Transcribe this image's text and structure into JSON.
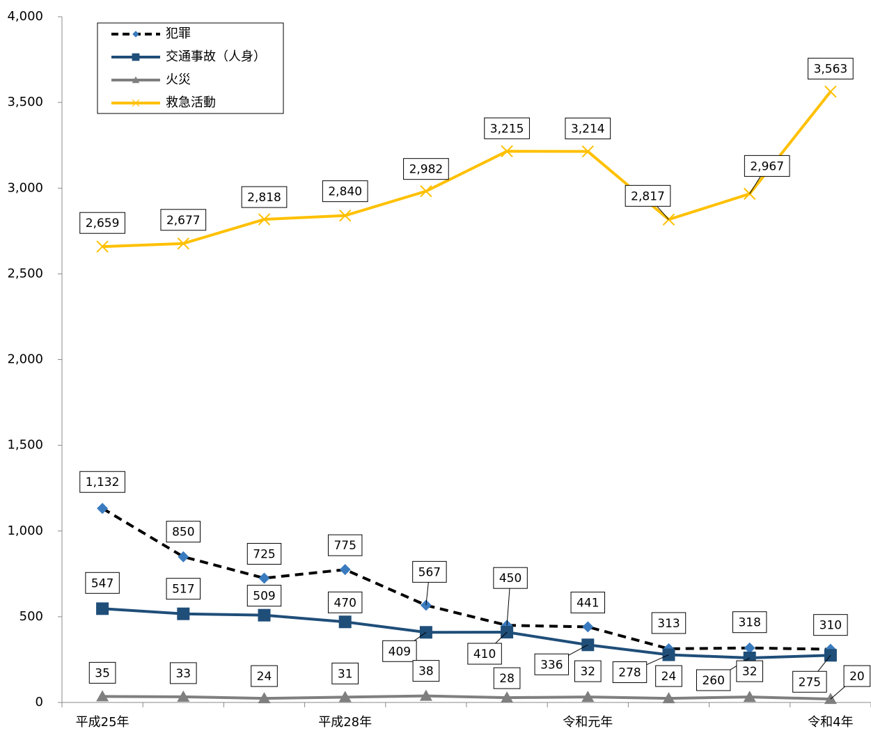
{
  "chart_data": {
    "type": "line",
    "categories": [
      "平成25年",
      null,
      null,
      "平成28年",
      null,
      null,
      "令和元年",
      null,
      null,
      "令和4年"
    ],
    "ylim": [
      0,
      4000
    ],
    "yticks": [
      0,
      {
        "value": 500,
        "label": "500"
      },
      {
        "value": 1000,
        "label": "1,000"
      },
      {
        "value": 1500,
        "label": "1,500"
      },
      {
        "value": 2000,
        "label": "2,000"
      },
      {
        "value": 2500,
        "label": "2,500"
      },
      {
        "value": 3000,
        "label": "3,000"
      },
      {
        "value": 3500,
        "label": "3,500"
      },
      {
        "value": 4000,
        "label": "4,000"
      }
    ],
    "grid": false,
    "legend": "upper left",
    "series": [
      {
        "name": "犯罪",
        "color": "#000000",
        "marker_color": "#3a7bbf",
        "marker": "diamond",
        "dash": true,
        "values": [
          1132,
          850,
          725,
          775,
          567,
          450,
          441,
          313,
          318,
          310
        ],
        "value_labels": [
          "1,132",
          "850",
          "725",
          "775",
          "567",
          "450",
          "441",
          "313",
          "318",
          "310"
        ]
      },
      {
        "name": "交通事故（人身）",
        "color": "#1f4e79",
        "marker_color": "#1f4e79",
        "marker": "square",
        "dash": false,
        "values": [
          547,
          517,
          509,
          470,
          409,
          410,
          336,
          278,
          260,
          275
        ],
        "value_labels": [
          "547",
          "517",
          "509",
          "470",
          "409",
          "410",
          "336",
          "278",
          "260",
          "275"
        ]
      },
      {
        "name": "火災",
        "color": "#7f7f7f",
        "marker_color": "#7f7f7f",
        "marker": "triangle",
        "dash": false,
        "values": [
          35,
          33,
          24,
          31,
          38,
          28,
          32,
          24,
          32,
          20
        ],
        "value_labels": [
          "35",
          "33",
          "24",
          "31",
          "38",
          "28",
          "32",
          "24",
          "32",
          "20"
        ]
      },
      {
        "name": "救急活動",
        "color": "#ffc000",
        "marker_color": "#ffc000",
        "marker": "x",
        "dash": false,
        "values": [
          2659,
          2677,
          2818,
          2840,
          2982,
          3215,
          3214,
          2817,
          2967,
          3563
        ],
        "value_labels": [
          "2,659",
          "2,677",
          "2,818",
          "2,840",
          "2,982",
          "3,215",
          "3,214",
          "2,817",
          "2,967",
          "3,563"
        ]
      }
    ]
  }
}
